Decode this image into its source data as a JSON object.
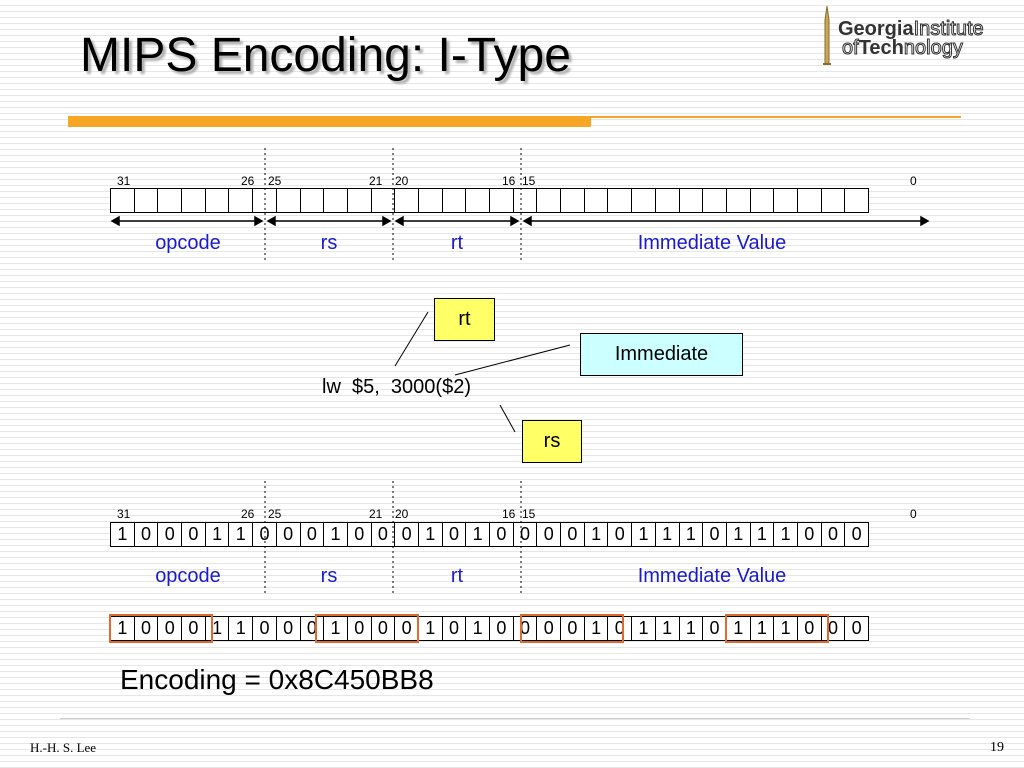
{
  "slide": {
    "title": "MIPS Encoding: I-Type",
    "logo": {
      "bold1": "Georgia",
      "light1": "Institute",
      "light2": "of",
      "bold2": "Tech",
      "light3": "nology"
    },
    "bit_positions": [
      "31",
      "26",
      "25",
      "21",
      "20",
      "16",
      "15",
      "0"
    ],
    "fields": [
      "opcode",
      "rs",
      "rt",
      "Immediate Value"
    ],
    "callouts": {
      "rt": "rt",
      "immediate": "Immediate",
      "rs": "rs"
    },
    "instruction": "lw  $5,  3000($2)",
    "bits": [
      "1",
      "0",
      "0",
      "0",
      "1",
      "1",
      "0",
      "0",
      "0",
      "1",
      "0",
      "0",
      "0",
      "1",
      "0",
      "1",
      "0",
      "0",
      "0",
      "0",
      "1",
      "0",
      "1",
      "1",
      "1",
      "0",
      "1",
      "1",
      "1",
      "0",
      "0",
      "0"
    ],
    "encoding": "Encoding = 0x8C450BB8",
    "footer_author": "H.-H. S. Lee",
    "page_number": "19"
  },
  "colors": {
    "field_text": "#1a1acc",
    "accent": "#f6a623",
    "hex_group_border": "#e0692e",
    "rt_box": "#ffff66",
    "imm_box": "#ccffff"
  }
}
